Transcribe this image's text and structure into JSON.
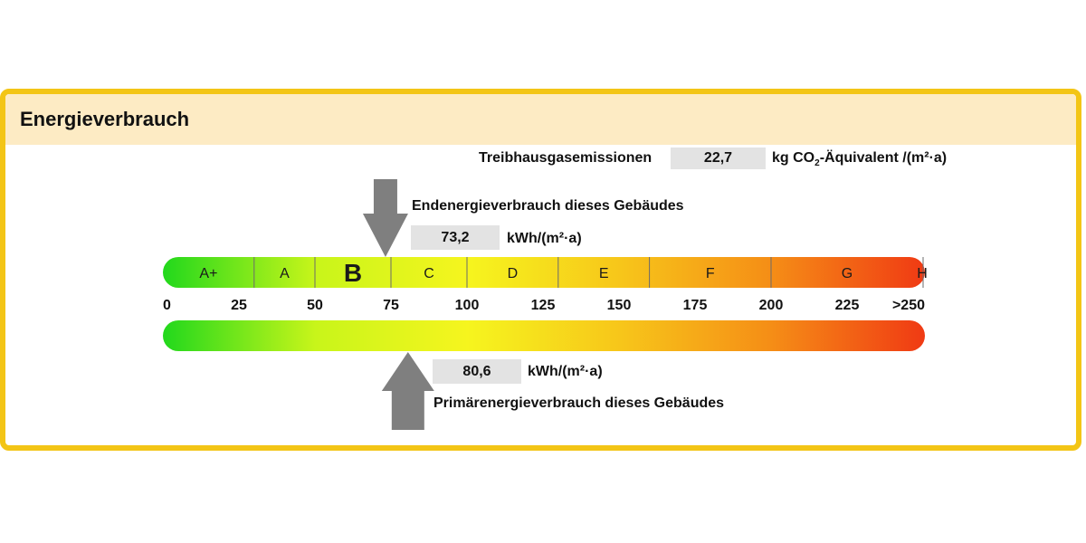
{
  "header": {
    "title": "Energieverbrauch"
  },
  "emissions": {
    "label": "Treibhausgasemissionen",
    "value": "22,7",
    "unit_prefix": "kg CO",
    "unit_sub": "2",
    "unit_suffix": "-Äquivalent /(m²·a)"
  },
  "end_energy": {
    "label": "Endenergieverbrauch dieses Gebäudes",
    "value_text": "73,2",
    "unit": "kWh/(m²·a)",
    "value": 73.2
  },
  "primary_energy": {
    "label": "Primärenergieverbrauch dieses Gebäudes",
    "value_text": "80,6",
    "unit": "kWh/(m²·a)",
    "value": 80.6
  },
  "colors": {
    "border": "#f3c516",
    "header_bg": "#fdebc4",
    "arrow": "#7f7f7f",
    "value_box": "#e3e3e3",
    "gradient_stops": [
      "#22d81c",
      "#c8f51a",
      "#f6f51e",
      "#f7c61a",
      "#f58d16",
      "#f03a14"
    ]
  },
  "chart_data": {
    "type": "scale",
    "scale_min": 0,
    "scale_max": 250,
    "ticks": [
      {
        "value": 0,
        "label": "0"
      },
      {
        "value": 25,
        "label": "25"
      },
      {
        "value": 50,
        "label": "50"
      },
      {
        "value": 75,
        "label": "75"
      },
      {
        "value": 100,
        "label": "100"
      },
      {
        "value": 125,
        "label": "125"
      },
      {
        "value": 150,
        "label": "150"
      },
      {
        "value": 175,
        "label": "175"
      },
      {
        "value": 200,
        "label": "200"
      },
      {
        "value": 225,
        "label": "225"
      },
      {
        "value": 250,
        "label": ">250"
      }
    ],
    "classes": [
      {
        "label": "A+",
        "from": 0,
        "to": 30
      },
      {
        "label": "A",
        "from": 30,
        "to": 50
      },
      {
        "label": "B",
        "from": 50,
        "to": 75,
        "highlighted": true
      },
      {
        "label": "C",
        "from": 75,
        "to": 100
      },
      {
        "label": "D",
        "from": 100,
        "to": 130
      },
      {
        "label": "E",
        "from": 130,
        "to": 160
      },
      {
        "label": "F",
        "from": 160,
        "to": 200
      },
      {
        "label": "G",
        "from": 200,
        "to": 250
      },
      {
        "label": "H",
        "from": 250,
        "to": 265
      }
    ],
    "markers": [
      {
        "name": "Endenergieverbrauch",
        "value": 73.2,
        "arrow": "down"
      },
      {
        "name": "Primärenergieverbrauch",
        "value": 80.6,
        "arrow": "up"
      }
    ]
  }
}
